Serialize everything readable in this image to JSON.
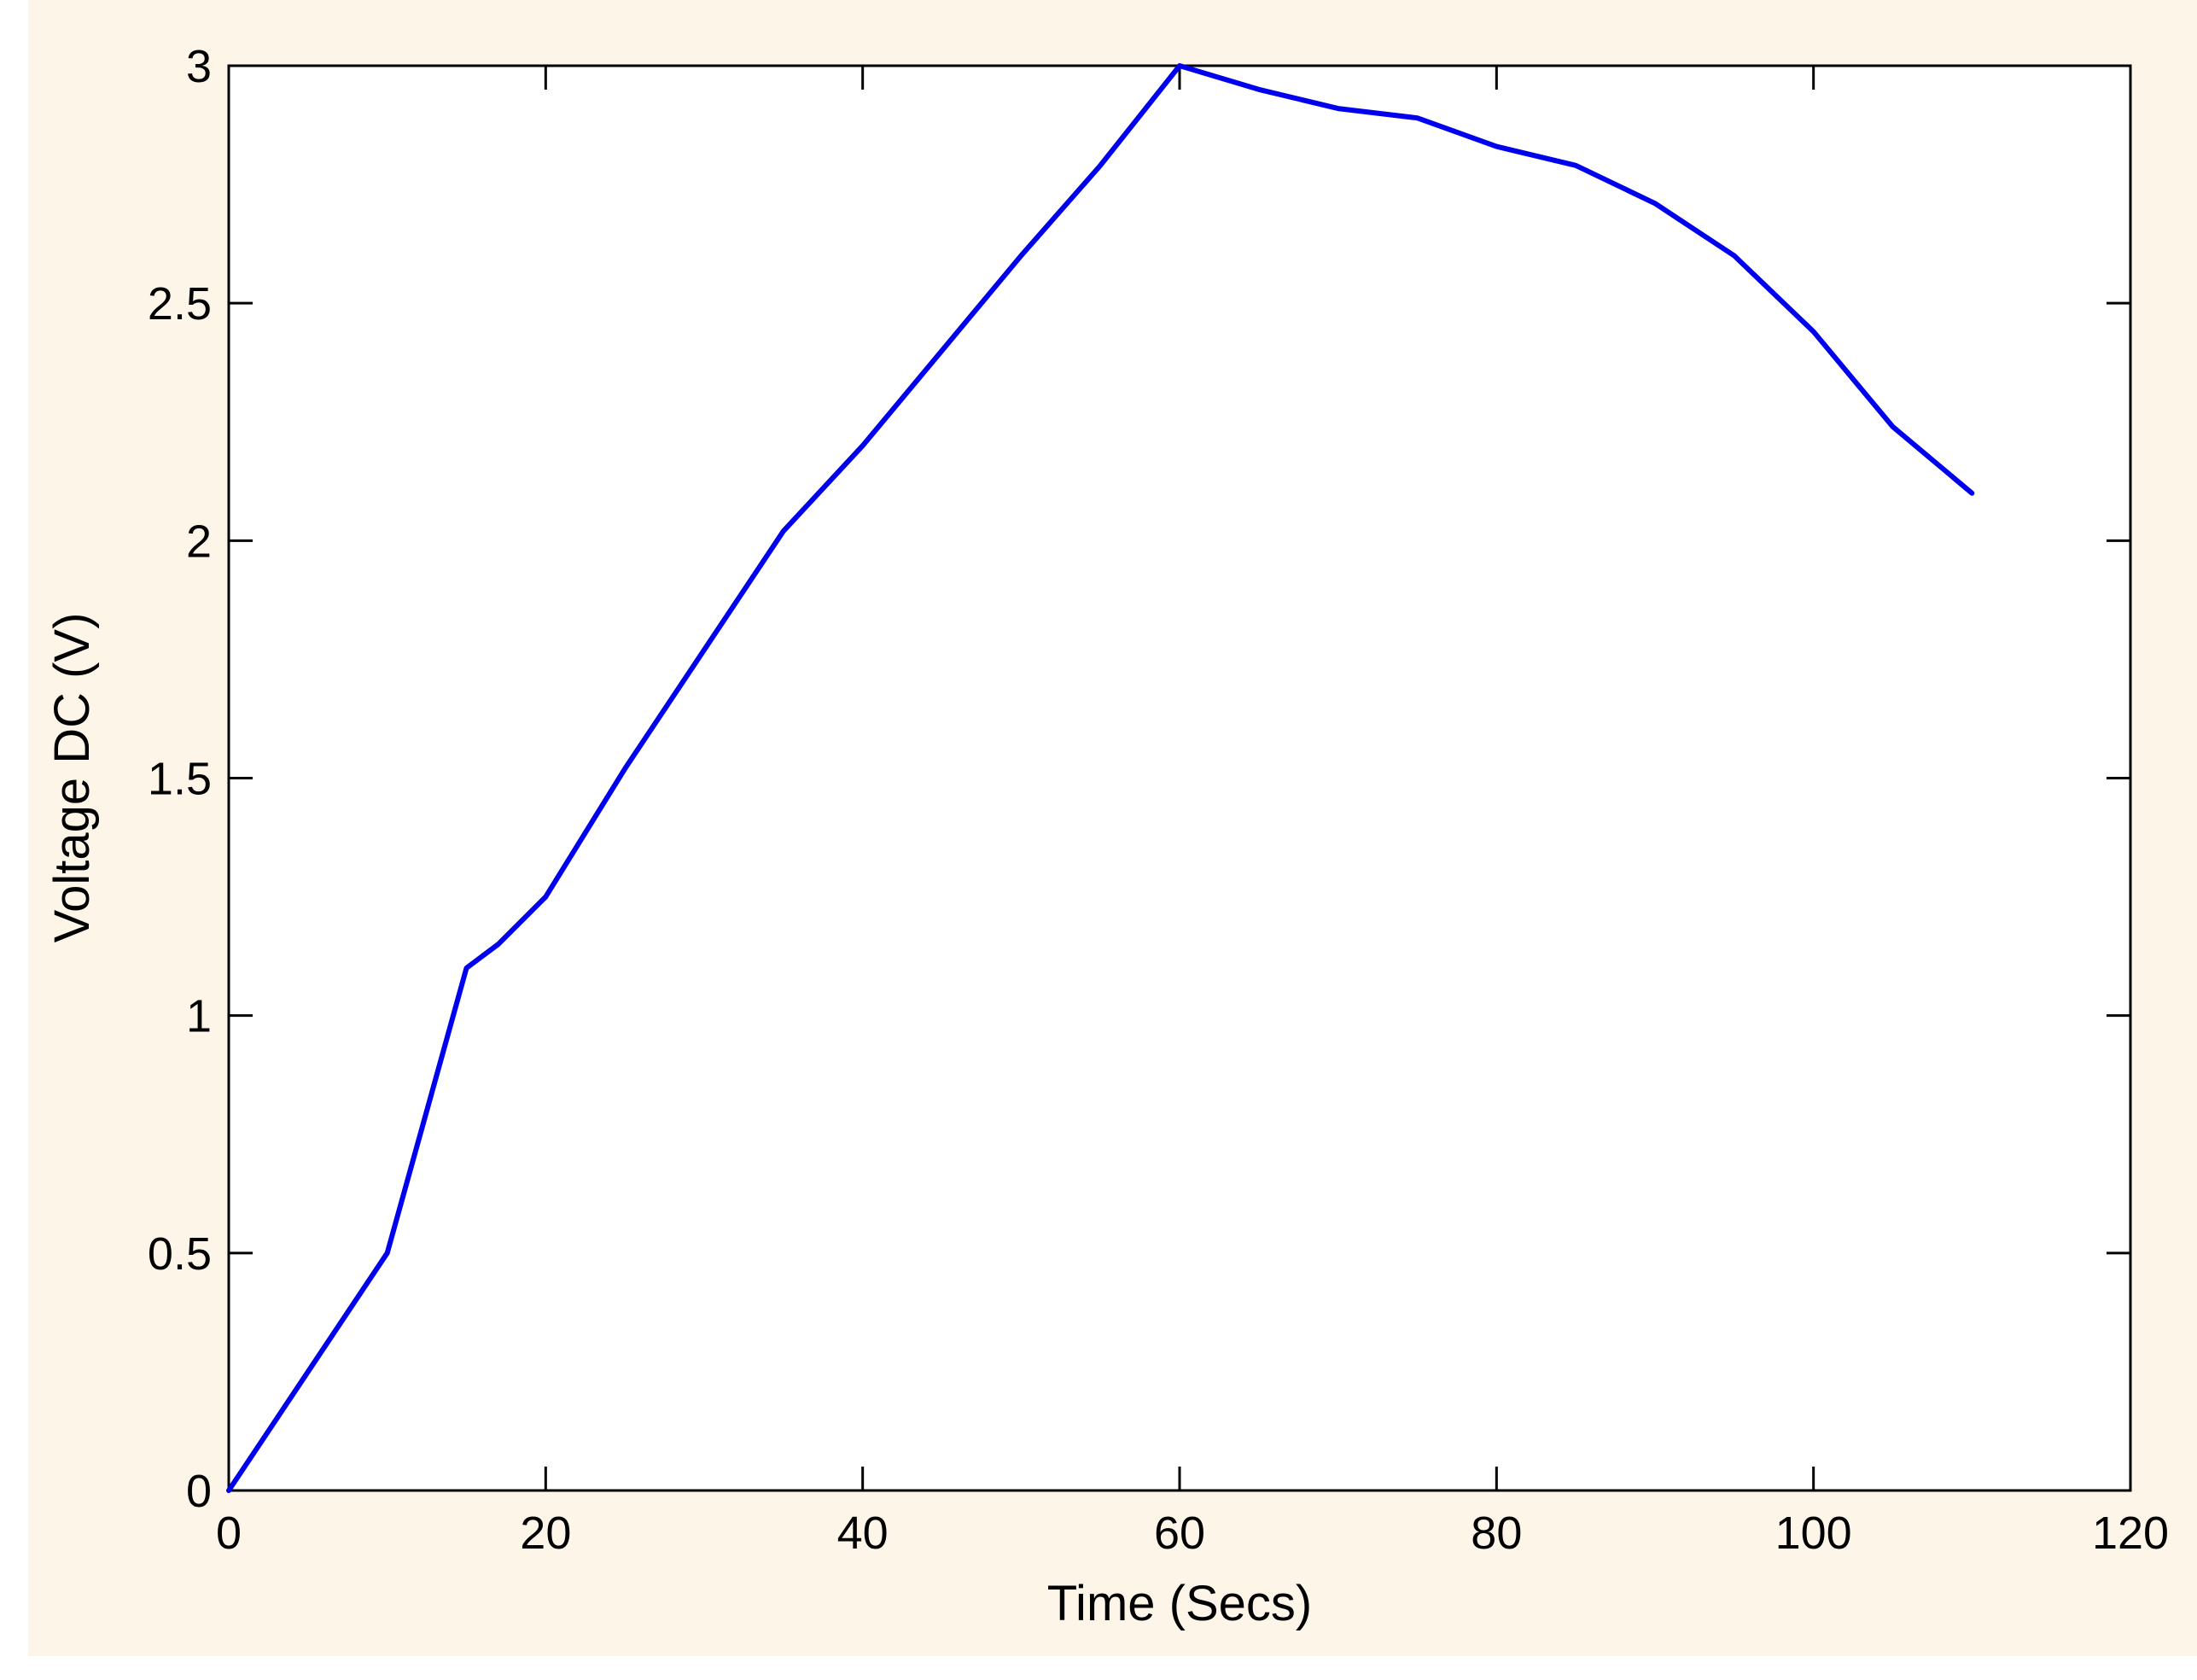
{
  "chart_data": {
    "type": "line",
    "title": "",
    "xlabel": "Time (Secs)",
    "ylabel": "Voltage DC (V)",
    "xlim": [
      0,
      120
    ],
    "ylim": [
      0,
      3
    ],
    "x_ticks": [
      0,
      20,
      40,
      60,
      80,
      100,
      120
    ],
    "y_ticks": [
      0,
      0.5,
      1,
      1.5,
      2,
      2.5,
      3
    ],
    "x_tick_labels": [
      "0",
      "20",
      "40",
      "60",
      "80",
      "100",
      "120"
    ],
    "y_tick_labels": [
      "0",
      "0.5",
      "1",
      "1.5",
      "2",
      "2.5",
      "3"
    ],
    "grid": false,
    "legend": "none",
    "series": [
      {
        "color": "#0000ee",
        "x": [
          0,
          10,
          15,
          17,
          20,
          25,
          30,
          35,
          40,
          45,
          50,
          55,
          60,
          65,
          70,
          75,
          80,
          85,
          90,
          95,
          100,
          105,
          110
        ],
        "y": [
          0,
          0.5,
          1.1,
          1.15,
          1.25,
          1.52,
          1.77,
          2.02,
          2.2,
          2.4,
          2.6,
          2.79,
          3.0,
          2.95,
          2.91,
          2.89,
          2.83,
          2.79,
          2.71,
          2.6,
          2.44,
          2.24,
          2.1
        ]
      }
    ],
    "colors": {
      "figure_background": "#fef5e9",
      "axes_background": "#ffffff",
      "axis": "#000000"
    }
  }
}
